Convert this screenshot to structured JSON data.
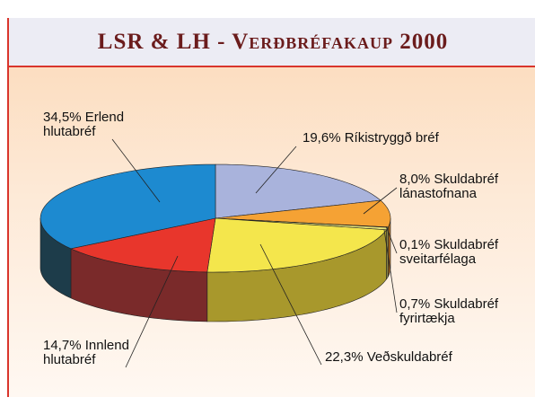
{
  "chart_data": {
    "type": "pie",
    "title": "LSR & LH - Verðbréfakaup 2000",
    "categories": [
      "Ríkistryggð bréf",
      "Skuldabréf lánastofnana",
      "Skuldabréf sveitarfélaga",
      "Skuldabréf fyrirtækja",
      "Veðskuldabréf",
      "Innlend hlutabréf",
      "Erlend hlutabréf"
    ],
    "values": [
      19.6,
      8.0,
      0.1,
      0.7,
      22.3,
      14.7,
      34.5
    ],
    "value_labels": [
      "19,6%",
      "8,0%",
      "0,1%",
      "0,7%",
      "22,3%",
      "14,7%",
      "34,5%"
    ],
    "colors": [
      "#a9b3dc",
      "#f5a234",
      "#f4f0c8",
      "#e6e27a",
      "#f4e64c",
      "#e8362c",
      "#1d8ad0"
    ]
  }
}
